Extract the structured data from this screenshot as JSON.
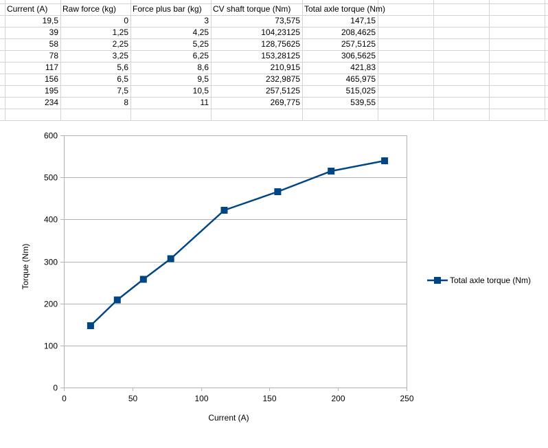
{
  "table": {
    "headers": [
      "Current (A)",
      "Raw force (kg)",
      "Force plus bar (kg)",
      "CV shaft torque (Nm)",
      "Total axle torque (Nm)"
    ],
    "rows": [
      [
        "19,5",
        "0",
        "3",
        "73,575",
        "147,15"
      ],
      [
        "39",
        "1,25",
        "4,25",
        "104,23125",
        "208,4625"
      ],
      [
        "58",
        "2,25",
        "5,25",
        "128,75625",
        "257,5125"
      ],
      [
        "78",
        "3,25",
        "6,25",
        "153,28125",
        "306,5625"
      ],
      [
        "117",
        "5,6",
        "8,6",
        "210,915",
        "421,83"
      ],
      [
        "156",
        "6,5",
        "9,5",
        "232,9875",
        "465,975"
      ],
      [
        "195",
        "7,5",
        "10,5",
        "257,5125",
        "515,025"
      ],
      [
        "234",
        "8",
        "11",
        "269,775",
        "539,55"
      ]
    ]
  },
  "chart_data": {
    "type": "line",
    "x": [
      19.5,
      39,
      58,
      78,
      117,
      156,
      195,
      234
    ],
    "series": [
      {
        "name": "Total axle torque (Nm)",
        "values": [
          147.15,
          208.4625,
          257.5125,
          306.5625,
          421.83,
          465.975,
          515.025,
          539.55
        ]
      }
    ],
    "title": "",
    "xlabel": "Current (A)",
    "ylabel": "Torque (Nm)",
    "xlim": [
      0,
      250
    ],
    "ylim": [
      0,
      600
    ],
    "xticks": [
      "0",
      "50",
      "100",
      "150",
      "200",
      "250"
    ],
    "yticks": [
      "0",
      "100",
      "200",
      "300",
      "400",
      "500",
      "600"
    ],
    "grid": "horizontal",
    "legend": "right",
    "marker": "square",
    "series_color": "#004586"
  }
}
